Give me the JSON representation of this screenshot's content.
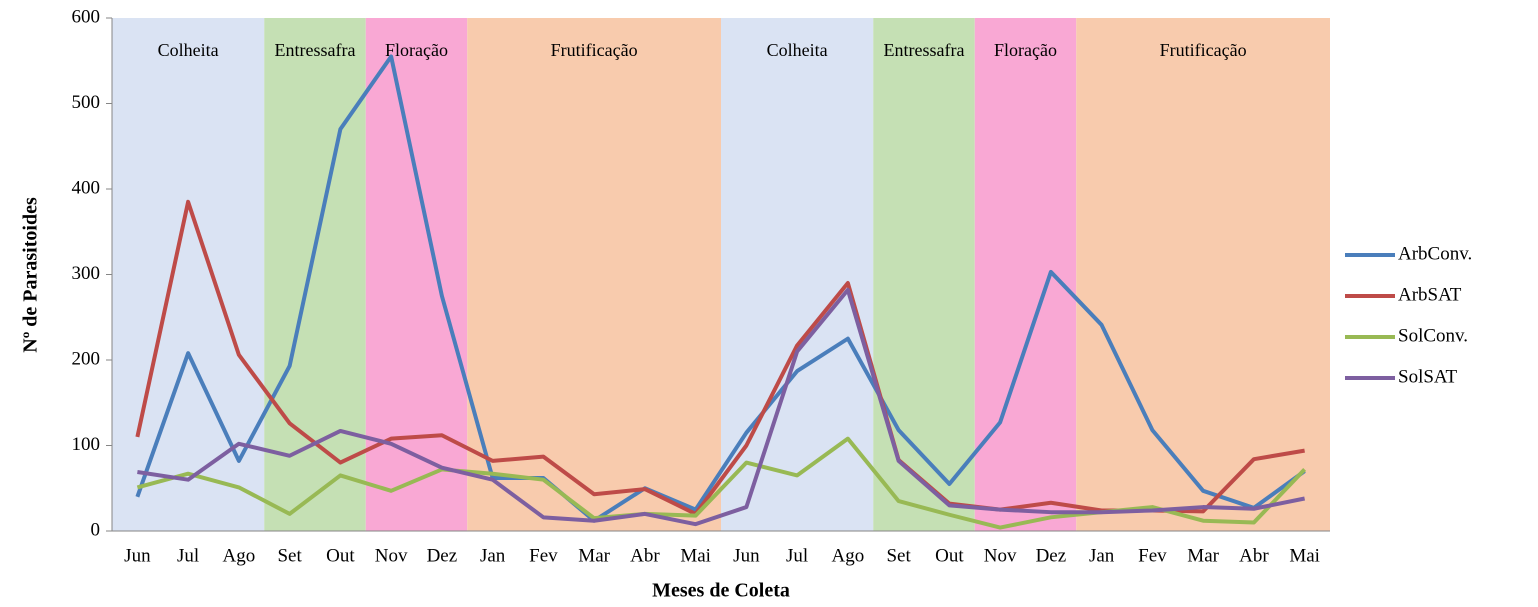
{
  "chart_data": {
    "type": "line",
    "x_label": "Meses de Coleta",
    "y_label": "Nº de Parasitoides",
    "categories": [
      "Jun",
      "Jul",
      "Ago",
      "Set",
      "Out",
      "Nov",
      "Dez",
      "Jan",
      "Fev",
      "Mar",
      "Abr",
      "Mai",
      "Jun",
      "Jul",
      "Ago",
      "Set",
      "Out",
      "Nov",
      "Dez",
      "Jan",
      "Fev",
      "Mar",
      "Abr",
      "Mai"
    ],
    "phases": [
      {
        "label": "Colheita",
        "months": 3,
        "color": "#dae3f3"
      },
      {
        "label": "Entressafra",
        "months": 2,
        "color": "#c5e0b4"
      },
      {
        "label": "Floração",
        "months": 2,
        "color": "#f9a8d4"
      },
      {
        "label": "Frutificação",
        "months": 5,
        "color": "#f8cbad"
      },
      {
        "label": "Colheita",
        "months": 3,
        "color": "#dae3f3"
      },
      {
        "label": "Entressafra",
        "months": 2,
        "color": "#c5e0b4"
      },
      {
        "label": "Floração",
        "months": 2,
        "color": "#f9a8d4"
      },
      {
        "label": "Frutificação",
        "months": 5,
        "color": "#f8cbad"
      }
    ],
    "series": [
      {
        "name": "ArbConv.",
        "color": "#4a7ebb",
        "values": [
          40,
          208,
          82,
          193,
          470,
          555,
          275,
          62,
          62,
          12,
          50,
          25,
          115,
          187,
          225,
          118,
          55,
          127,
          303,
          241,
          118,
          47,
          27,
          70
        ]
      },
      {
        "name": "ArbSAT",
        "color": "#be4b48",
        "values": [
          110,
          385,
          206,
          126,
          80,
          108,
          112,
          82,
          87,
          43,
          49,
          20,
          100,
          217,
          290,
          83,
          32,
          25,
          33,
          24,
          24,
          23,
          84,
          94
        ]
      },
      {
        "name": "SolConv.",
        "color": "#98b954",
        "values": [
          51,
          67,
          51,
          20,
          65,
          47,
          72,
          67,
          60,
          15,
          20,
          18,
          80,
          65,
          108,
          35,
          19,
          4,
          16,
          22,
          28,
          12,
          10,
          72
        ]
      },
      {
        "name": "SolSAT",
        "color": "#7d5fa0",
        "values": [
          69,
          60,
          102,
          88,
          117,
          102,
          74,
          60,
          16,
          12,
          20,
          8,
          28,
          210,
          282,
          82,
          30,
          25,
          22,
          22,
          24,
          28,
          26,
          38
        ]
      }
    ],
    "ylim": [
      0,
      600
    ],
    "yticks": [
      0,
      100,
      200,
      300,
      400,
      500,
      600
    ],
    "legend": "right"
  }
}
